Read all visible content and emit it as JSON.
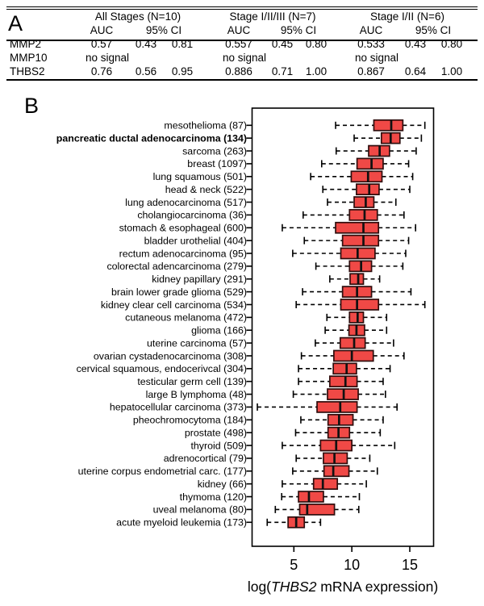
{
  "panel_a": {
    "label": "A",
    "groups": [
      {
        "title": "All Stages (N=10)",
        "auc_header": "AUC",
        "ci_header": "95% CI"
      },
      {
        "title": "Stage I/II/III (N=7)",
        "auc_header": "AUC",
        "ci_header": "95% CI"
      },
      {
        "title": "Stage I/II (N=6)",
        "auc_header": "AUC",
        "ci_header": "95% CI"
      }
    ],
    "rows": [
      {
        "name": "MMP2",
        "g1": {
          "auc": "0.57",
          "lo": "0.43",
          "hi": "0.81"
        },
        "g2": {
          "auc": "0.557",
          "lo": "0.45",
          "hi": "0.80"
        },
        "g3": {
          "auc": "0.533",
          "lo": "0.43",
          "hi": "0.80"
        }
      },
      {
        "name": "MMP10",
        "g1": {
          "auc": "no signal",
          "lo": "",
          "hi": ""
        },
        "g2": {
          "auc": "no signal",
          "lo": "",
          "hi": ""
        },
        "g3": {
          "auc": "no signal",
          "lo": "",
          "hi": ""
        }
      },
      {
        "name": "THBS2",
        "g1": {
          "auc": "0.76",
          "lo": "0.56",
          "hi": "0.95"
        },
        "g2": {
          "auc": "0.886",
          "lo": "0.71",
          "hi": "1.00"
        },
        "g3": {
          "auc": "0.867",
          "lo": "0.64",
          "hi": "1.00"
        }
      }
    ]
  },
  "panel_b": {
    "label": "B"
  },
  "colors": {
    "box_fill": "#f04946",
    "box_stroke": "#2f0d0d",
    "line": "#000000",
    "band_gray": "#d4d4d4"
  },
  "chart_data": {
    "type": "boxplot-horizontal",
    "xlabel_parts": [
      "log(",
      "THBS2",
      " mRNA expression)"
    ],
    "xlabel_italic_part": 1,
    "x_ticks": [
      5,
      10,
      15
    ],
    "x_range": [
      1.4,
      17.05
    ],
    "grid": false,
    "legend": "none",
    "rows": [
      {
        "label": "mesothelioma (87)",
        "bold": false,
        "low": 8.6,
        "q1": 11.9,
        "median": 13.4,
        "q3": 14.4,
        "high": 16.3
      },
      {
        "label": "pancreatic ductal adenocarcinoma (134)",
        "bold": true,
        "low": 10.2,
        "q1": 12.55,
        "median": 13.35,
        "q3": 14.15,
        "high": 16.0
      },
      {
        "label": "sarcoma (263)",
        "bold": false,
        "low": 8.65,
        "q1": 11.45,
        "median": 12.4,
        "q3": 13.25,
        "high": 15.55
      },
      {
        "label": "breast (1097)",
        "bold": false,
        "low": 7.4,
        "q1": 10.45,
        "median": 11.7,
        "q3": 12.7,
        "high": 14.9
      },
      {
        "label": "lung squamous (501)",
        "bold": false,
        "low": 6.45,
        "q1": 9.95,
        "median": 11.4,
        "q3": 12.6,
        "high": 15.25
      },
      {
        "label": "head & neck (522)",
        "bold": false,
        "low": 7.5,
        "q1": 10.4,
        "median": 11.5,
        "q3": 12.35,
        "high": 15.0
      },
      {
        "label": "lung adenocarcinoma (517)",
        "bold": false,
        "low": 7.9,
        "q1": 10.2,
        "median": 11.2,
        "q3": 11.9,
        "high": 13.8
      },
      {
        "label": "cholangiocarcinoma (36)",
        "bold": false,
        "low": 5.8,
        "q1": 9.8,
        "median": 11.1,
        "q3": 12.2,
        "high": 14.5
      },
      {
        "label": "stomach & esophageal (600)",
        "bold": false,
        "low": 4.0,
        "q1": 8.6,
        "median": 11.0,
        "q3": 12.3,
        "high": 15.5
      },
      {
        "label": "bladder urothelial (404)",
        "bold": false,
        "low": 5.9,
        "q1": 9.2,
        "median": 11.0,
        "q3": 12.3,
        "high": 14.9
      },
      {
        "label": "rectum adenocarcinoma (95)",
        "bold": false,
        "low": 4.9,
        "q1": 9.05,
        "median": 10.5,
        "q3": 12.0,
        "high": 14.65
      },
      {
        "label": "colorectal adencarcinoma (279)",
        "bold": false,
        "low": 6.9,
        "q1": 9.8,
        "median": 10.8,
        "q3": 11.7,
        "high": 14.4
      },
      {
        "label": "kidney papillary (291)",
        "bold": false,
        "low": 8.1,
        "q1": 9.85,
        "median": 10.55,
        "q3": 11.0,
        "high": 12.4
      },
      {
        "label": "brain lower grade glioma (529)",
        "bold": false,
        "low": 5.75,
        "q1": 9.2,
        "median": 10.45,
        "q3": 11.7,
        "high": 15.1
      },
      {
        "label": "kidney clear cell carcinoma (534)",
        "bold": false,
        "low": 5.2,
        "q1": 9.05,
        "median": 10.45,
        "q3": 12.3,
        "high": 16.3
      },
      {
        "label": "cutaneous melanoma (472)",
        "bold": false,
        "low": 7.85,
        "q1": 9.8,
        "median": 10.5,
        "q3": 11.0,
        "high": 13.0
      },
      {
        "label": "glioma (166)",
        "bold": false,
        "low": 7.7,
        "q1": 9.75,
        "median": 10.4,
        "q3": 11.1,
        "high": 13.0
      },
      {
        "label": "uterine carcinoma (57)",
        "bold": false,
        "low": 6.85,
        "q1": 9.0,
        "median": 10.2,
        "q3": 11.15,
        "high": 13.6
      },
      {
        "label": "ovarian cystadenocarcinoma (308)",
        "bold": false,
        "low": 5.65,
        "q1": 8.45,
        "median": 10.0,
        "q3": 11.85,
        "high": 14.5
      },
      {
        "label": "cervical squamous, endocerivcal (304)",
        "bold": false,
        "low": 5.4,
        "q1": 8.4,
        "median": 9.55,
        "q3": 10.4,
        "high": 13.3
      },
      {
        "label": "testicular germ cell (139)",
        "bold": false,
        "low": 5.4,
        "q1": 8.1,
        "median": 9.45,
        "q3": 10.45,
        "high": 12.7
      },
      {
        "label": "large B lymphoma (48)",
        "bold": false,
        "low": 4.95,
        "q1": 7.9,
        "median": 9.3,
        "q3": 10.55,
        "high": 12.9
      },
      {
        "label": "hepatocellular carcinoma (373)",
        "bold": false,
        "low": 1.85,
        "q1": 7.0,
        "median": 9.0,
        "q3": 10.45,
        "high": 13.9
      },
      {
        "label": "pheochromocytoma (184)",
        "bold": false,
        "low": 5.6,
        "q1": 7.95,
        "median": 8.9,
        "q3": 10.1,
        "high": 12.7
      },
      {
        "label": "prostate (498)",
        "bold": false,
        "low": 5.15,
        "q1": 7.95,
        "median": 8.85,
        "q3": 9.8,
        "high": 12.45
      },
      {
        "label": "thyroid (509)",
        "bold": false,
        "low": 4.0,
        "q1": 7.3,
        "median": 8.65,
        "q3": 10.0,
        "high": 13.7
      },
      {
        "label": "adrenocortical (79)",
        "bold": false,
        "low": 5.2,
        "q1": 7.55,
        "median": 8.5,
        "q3": 9.6,
        "high": 11.55
      },
      {
        "label": "uterine corpus endometrial carc. (177)",
        "bold": false,
        "low": 4.9,
        "q1": 7.6,
        "median": 8.4,
        "q3": 9.75,
        "high": 12.2
      },
      {
        "label": "kidney (66)",
        "bold": false,
        "low": 4.0,
        "q1": 6.7,
        "median": 7.5,
        "q3": 8.75,
        "high": 11.25
      },
      {
        "label": "thymoma (120)",
        "bold": false,
        "low": 3.95,
        "q1": 5.4,
        "median": 6.3,
        "q3": 7.55,
        "high": 10.65
      },
      {
        "label": "uveal melanoma (80)",
        "bold": false,
        "low": 3.4,
        "q1": 5.5,
        "median": 6.15,
        "q3": 8.5,
        "high": 10.6
      },
      {
        "label": "acute myeloid leukemia (173)",
        "bold": false,
        "low": 2.7,
        "q1": 4.5,
        "median": 5.2,
        "q3": 5.9,
        "high": 7.3
      }
    ]
  }
}
